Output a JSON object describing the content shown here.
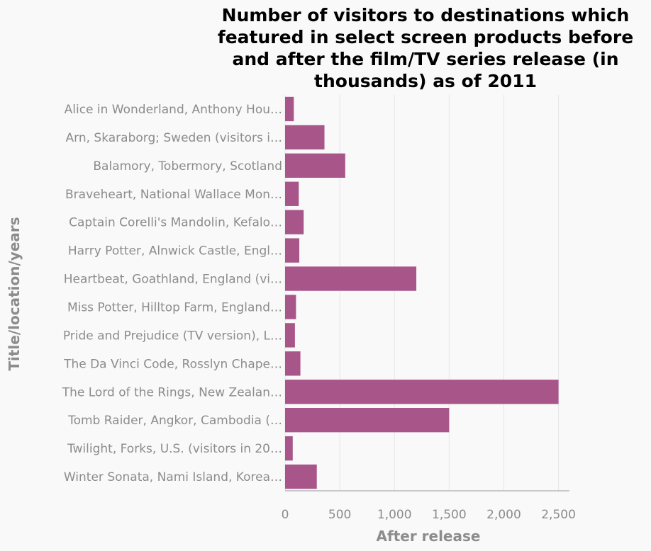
{
  "chart_data": {
    "type": "bar",
    "orientation": "horizontal",
    "title_lines": [
      "Number of visitors to destinations which",
      "featured in select screen products before",
      "and after the film/TV series release (in",
      "thousands) as of 2011"
    ],
    "xlabel": "After release",
    "ylabel": "Title/location/years",
    "xlim": [
      0,
      2600
    ],
    "xticks": [
      0,
      500,
      1000,
      1500,
      2000,
      2500
    ],
    "xtick_labels": [
      "0",
      "500",
      "1,000",
      "1,500",
      "2,000",
      "2,500"
    ],
    "grid": true,
    "bar_color": "#a8568a",
    "categories": [
      "Alice in Wonderland, Anthony Hou…",
      "Arn, Skaraborg; Sweden (visitors i…",
      "Balamory, Tobermory, Scotland",
      "Braveheart, National Wallace Mon…",
      "Captain Corelli's Mandolin, Kefalo…",
      "Harry Potter, Alnwick Castle, Engl…",
      "Heartbeat, Goathland, England (vi…",
      "Miss Potter, Hilltop Farm, England…",
      "Pride and Prejudice (TV version), L…",
      "The Da Vinci Code, Rosslyn Chape…",
      "The Lord of the Rings, New Zealan…",
      "Tomb Raider, Angkor, Cambodia (…",
      "Twilight, Forks, U.S. (visitors in 20…",
      "Winter Sonata, Nami Island, Korea…"
    ],
    "values": [
      80,
      360,
      550,
      125,
      170,
      130,
      1200,
      100,
      90,
      140,
      2500,
      1500,
      70,
      290
    ]
  }
}
